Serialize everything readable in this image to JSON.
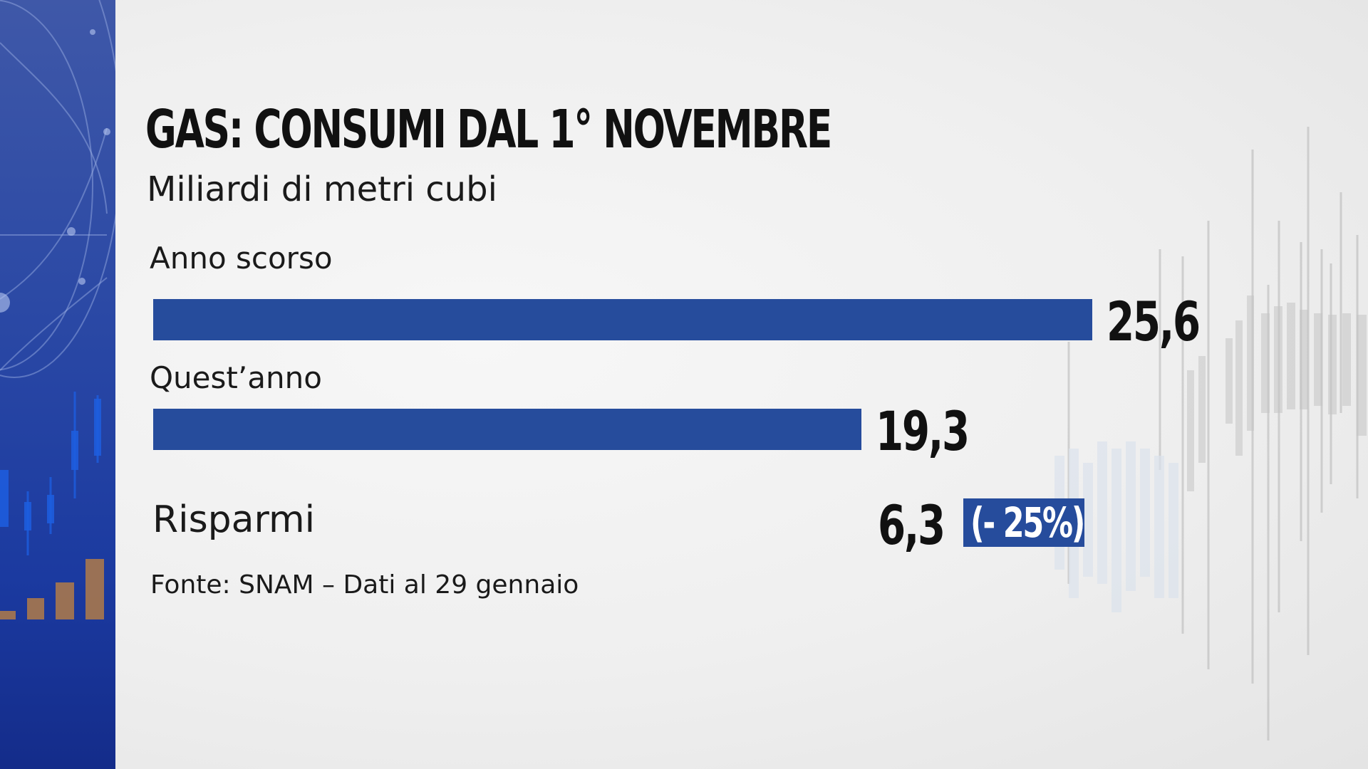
{
  "title": "GAS: CONSUMI DAL 1° NOVEMBRE",
  "subtitle": "Miliardi di metri cubi",
  "source": "Fonte:  SNAM – Dati al 29 gennaio",
  "colors": {
    "bar": "#264c9c",
    "badge": "#264c9c",
    "side_panel": "#1f3fa2",
    "text": "#111111"
  },
  "savings": {
    "label": "Risparmi",
    "value": "6,3",
    "percent": "(- 25%)"
  },
  "chart_data": {
    "type": "bar",
    "orientation": "horizontal",
    "categories": [
      "Anno scorso",
      "Quest’anno"
    ],
    "values": [
      25.6,
      19.3
    ],
    "value_labels": [
      "25,6",
      "19,3"
    ],
    "title": "GAS: CONSUMI DAL 1° NOVEMBRE",
    "subtitle": "Miliardi di metri cubi",
    "xlim": [
      0,
      25.6
    ],
    "grid": false
  }
}
